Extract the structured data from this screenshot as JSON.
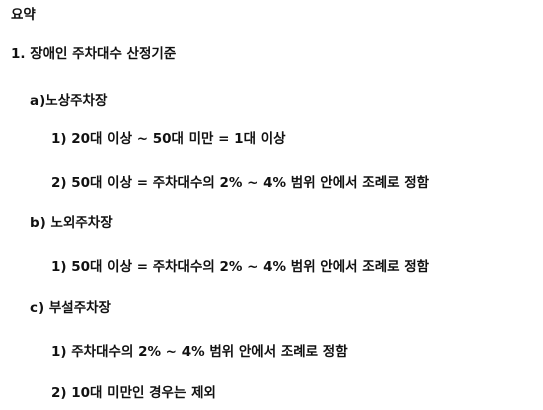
{
  "document": {
    "heading": "요약",
    "section1": "1. 장애인 주차대수 산정기준",
    "a": {
      "title": "a)노상주차장",
      "items": [
        "1) 20대 이상 ~ 50대 미만 = 1대 이상",
        "2) 50대 이상 = 주차대수의 2% ~ 4% 범위 안에서 조례로 정함"
      ]
    },
    "b": {
      "title": "b) 노외주차장",
      "items": [
        "1) 50대 이상 = 주차대수의 2% ~ 4% 범위 안에서 조례로 정함"
      ]
    },
    "c": {
      "title": "c) 부설주차장",
      "items": [
        "1) 주차대수의 2% ~ 4% 범위 안에서 조례로 정함",
        "2) 10대 미만인 경우는 제외"
      ]
    }
  }
}
